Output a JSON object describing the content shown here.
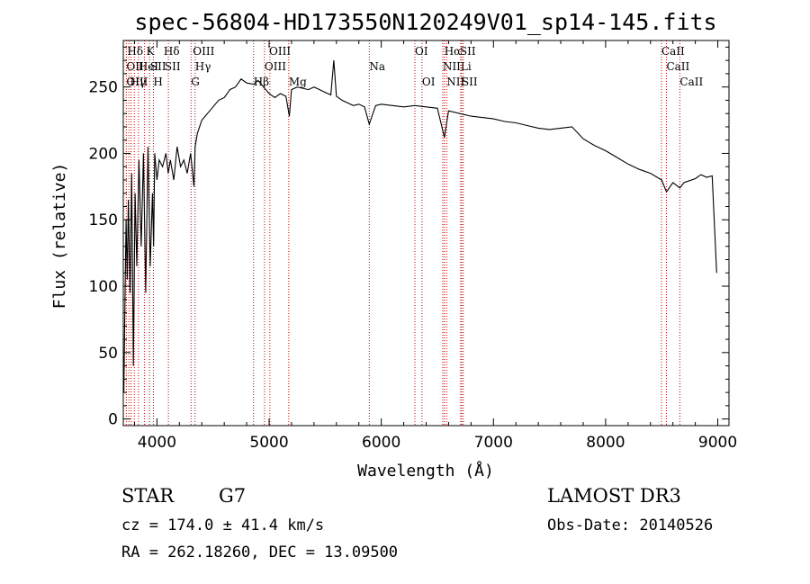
{
  "chart_data": {
    "type": "line",
    "title": "spec-56804-HD173550N120249V01_sp14-145.fits",
    "xlabel": "Wavelength (Å)",
    "ylabel": "Flux (relative)",
    "xlim": [
      3700,
      9100
    ],
    "ylim": [
      -5,
      285
    ],
    "xticks": [
      4000,
      5000,
      6000,
      7000,
      8000,
      9000
    ],
    "yticks": [
      0,
      50,
      100,
      150,
      200,
      250
    ],
    "series": [
      {
        "values_x": [
          3705,
          3715,
          3725,
          3735,
          3745,
          3760,
          3775,
          3790,
          3805,
          3820,
          3840,
          3860,
          3880,
          3900,
          3920,
          3940,
          3960,
          3970,
          3980,
          4000,
          4020,
          4050,
          4080,
          4100,
          4120,
          4150,
          4180,
          4210,
          4240,
          4270,
          4300,
          4330,
          4340,
          4360,
          4400,
          4450,
          4500,
          4550,
          4600,
          4650,
          4700,
          4750,
          4800,
          4861,
          4900,
          4950,
          5000,
          5050,
          5100,
          5150,
          5180,
          5200,
          5250,
          5300,
          5350,
          5400,
          5450,
          5500,
          5550,
          5577,
          5600,
          5650,
          5700,
          5750,
          5800,
          5850,
          5893,
          5950,
          6000,
          6100,
          6200,
          6300,
          6400,
          6500,
          6563,
          6600,
          6700,
          6800,
          6900,
          7000,
          7100,
          7200,
          7300,
          7400,
          7500,
          7600,
          7700,
          7800,
          7900,
          8000,
          8100,
          8200,
          8300,
          8400,
          8500,
          8542,
          8600,
          8662,
          8700,
          8800,
          8850,
          8900,
          8950,
          8990
        ],
        "values_y": [
          20,
          90,
          150,
          105,
          165,
          95,
          185,
          40,
          170,
          115,
          195,
          130,
          200,
          95,
          205,
          115,
          170,
          130,
          200,
          180,
          195,
          190,
          200,
          185,
          195,
          180,
          205,
          190,
          195,
          185,
          200,
          175,
          205,
          215,
          225,
          230,
          235,
          240,
          242,
          248,
          250,
          256,
          253,
          252,
          255,
          250,
          245,
          242,
          245,
          243,
          228,
          248,
          250,
          249,
          248,
          250,
          248,
          246,
          244,
          270,
          243,
          240,
          238,
          236,
          237,
          235,
          222,
          236,
          237,
          236,
          235,
          236,
          235,
          234,
          212,
          232,
          230,
          228,
          227,
          226,
          224,
          223,
          221,
          219,
          218,
          219,
          220,
          211,
          206,
          202,
          197,
          192,
          188,
          185,
          180,
          171,
          178,
          174,
          178,
          181,
          184,
          182,
          183,
          110
        ]
      }
    ],
    "line_markers": [
      {
        "label": "Hδ",
        "x": 3735,
        "row": 1
      },
      {
        "label": "K",
        "x": 3905,
        "row": 1
      },
      {
        "label": "Hδ",
        "x": 4060,
        "row": 1
      },
      {
        "label": "OIII",
        "x": 4320,
        "row": 1
      },
      {
        "label": "OIII",
        "x": 5000,
        "row": 1
      },
      {
        "label": "OI",
        "x": 6300,
        "row": 1
      },
      {
        "label": "Hα",
        "x": 6562,
        "row": 1
      },
      {
        "label": "SII",
        "x": 6700,
        "row": 1
      },
      {
        "label": "CaII",
        "x": 8498,
        "row": 1
      },
      {
        "label": "OII",
        "x": 3727,
        "row": 2
      },
      {
        "label": "HeI",
        "x": 3835,
        "row": 2
      },
      {
        "label": "SII",
        "x": 3940,
        "row": 2
      },
      {
        "label": "SII",
        "x": 4068,
        "row": 2
      },
      {
        "label": "Hγ",
        "x": 4340,
        "row": 2
      },
      {
        "label": "OIII",
        "x": 4959,
        "row": 2
      },
      {
        "label": "Na",
        "x": 5893,
        "row": 2
      },
      {
        "label": "NII",
        "x": 6548,
        "row": 2
      },
      {
        "label": "Li",
        "x": 6708,
        "row": 2
      },
      {
        "label": "CaII",
        "x": 8542,
        "row": 2
      },
      {
        "label": "OIII",
        "x": 3727,
        "row": 3
      },
      {
        "label": "Hγ",
        "x": 3760,
        "row": 3
      },
      {
        "label": "H",
        "x": 3968,
        "row": 3
      },
      {
        "label": "G",
        "x": 4304,
        "row": 3
      },
      {
        "label": "Hβ",
        "x": 4861,
        "row": 3
      },
      {
        "label": "Mg",
        "x": 5175,
        "row": 3
      },
      {
        "label": "OI",
        "x": 6363,
        "row": 3
      },
      {
        "label": "NII",
        "x": 6583,
        "row": 3
      },
      {
        "label": "SII",
        "x": 6716,
        "row": 3
      },
      {
        "label": "CaII",
        "x": 8662,
        "row": 3
      }
    ],
    "vlines": [
      3727,
      3750,
      3770,
      3798,
      3835,
      3889,
      3934,
      3968,
      4102,
      4304,
      4340,
      4861,
      4959,
      5007,
      5175,
      5893,
      6300,
      6363,
      6548,
      6563,
      6583,
      6708,
      6716,
      6731,
      8498,
      8542,
      8662
    ]
  },
  "info": {
    "class_label": "STAR",
    "subclass": "G7",
    "survey": "LAMOST DR3",
    "cz": "cz = 174.0 ± 41.4 km/s",
    "obs_date": "Obs-Date: 20140526",
    "coords": "RA = 262.18260, DEC =  13.09500"
  },
  "colors": {
    "line": "#000000",
    "marker": "#c00000"
  }
}
